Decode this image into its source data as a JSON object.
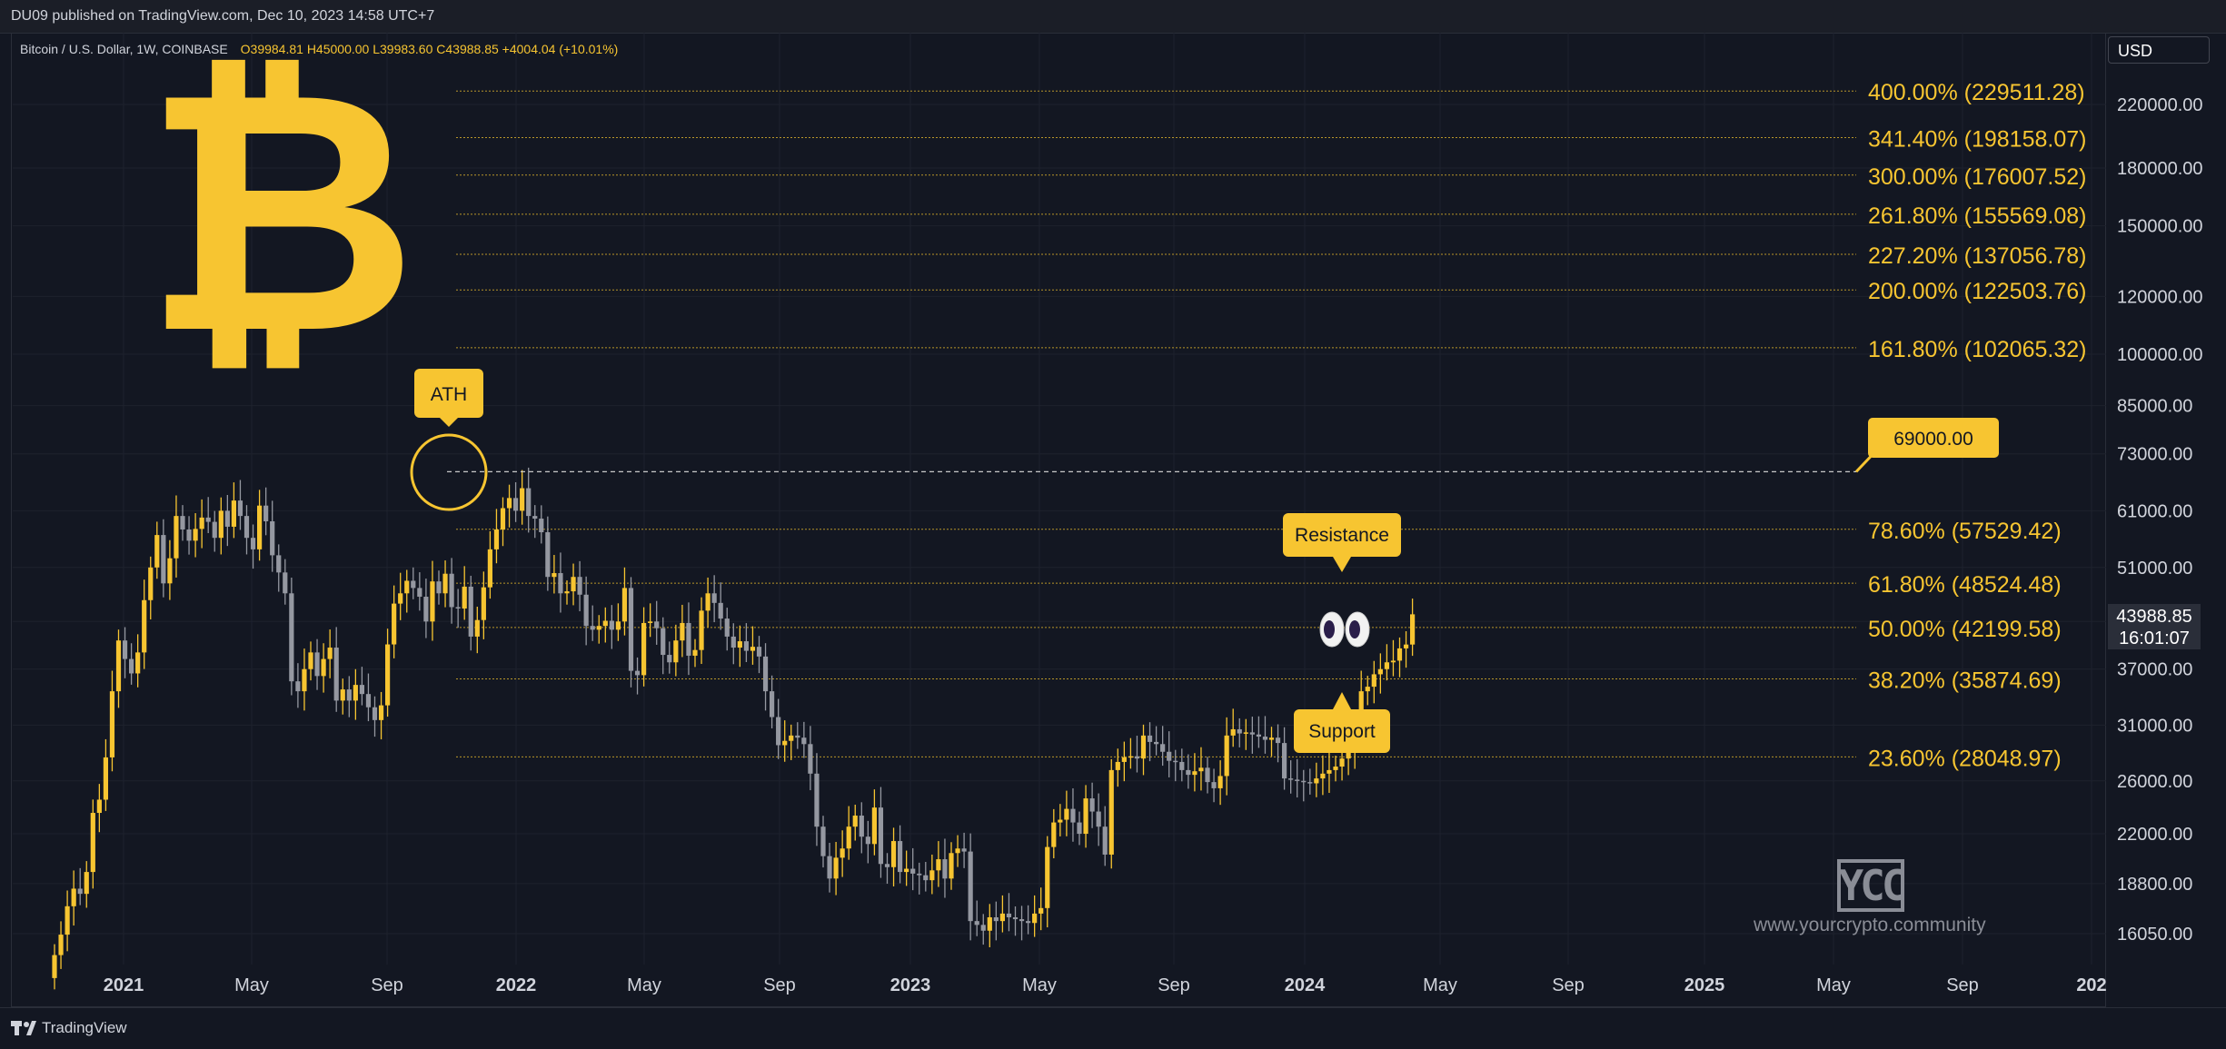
{
  "header": {
    "published": "DU09 published on TradingView.com, Dec 10, 2023 14:58 UTC+7"
  },
  "symbol": {
    "name": "Bitcoin / U.S. Dollar, 1W, COINBASE",
    "ohlc": "O39984.81 H45000.00 L39983.60 C43988.85 +4004.04 (+10.01%)"
  },
  "currency": "USD",
  "current_price": "43988.85",
  "countdown": "16:01:07",
  "footer": {
    "brand": "TradingView"
  },
  "watermark": {
    "logo": "YCC",
    "url": "www.yourcrypto.community"
  },
  "colors": {
    "background": "#131722",
    "accent": "#f7c531",
    "bear": "#9598a1",
    "bull": "#f7c531"
  },
  "icons": [
    "bitcoin-logo-icon",
    "eyes-icon",
    "tradingview-logo-icon"
  ],
  "chart_data": {
    "type": "candlestick",
    "title": "",
    "y_scale": "log",
    "y_ticks": [
      "220000.00",
      "180000.00",
      "150000.00",
      "120000.00",
      "100000.00",
      "85000.00",
      "73000.00",
      "61000.00",
      "51000.00",
      "43000.00",
      "37000.00",
      "31000.00",
      "26000.00",
      "22000.00",
      "18800.00",
      "16050.00"
    ],
    "x_ticks": [
      "2021",
      "May",
      "Sep",
      "2022",
      "May",
      "Sep",
      "2023",
      "May",
      "Sep",
      "2024",
      "May",
      "Sep",
      "2025",
      "May",
      "Sep",
      "202"
    ],
    "fib_levels": [
      {
        "label": "400.00% (229511.28)",
        "value": 229511.28
      },
      {
        "label": "341.40% (198158.07)",
        "value": 198158.07
      },
      {
        "label": "300.00% (176007.52)",
        "value": 176007.52
      },
      {
        "label": "261.80% (155569.08)",
        "value": 155569.08
      },
      {
        "label": "227.20% (137056.78)",
        "value": 137056.78
      },
      {
        "label": "200.00% (122503.76)",
        "value": 122503.76
      },
      {
        "label": "161.80% (102065.32)",
        "value": 102065.32
      },
      {
        "label": "78.60% (57529.42)",
        "value": 57529.42
      },
      {
        "label": "61.80% (48524.48)",
        "value": 48524.48
      },
      {
        "label": "50.00% (42199.58)",
        "value": 42199.58
      },
      {
        "label": "38.20% (35874.69)",
        "value": 35874.69
      },
      {
        "label": "23.60% (28048.97)",
        "value": 28048.97
      }
    ],
    "ath": {
      "label": "ATH",
      "value": 69000
    },
    "ath_price_label": "69000.00",
    "annotations": [
      "Resistance",
      "Support"
    ],
    "weekly_closes": [
      15000,
      16000,
      17500,
      18500,
      18200,
      19500,
      23500,
      24500,
      28000,
      34500,
      40500,
      38200,
      36500,
      39000,
      46000,
      51000,
      56500,
      48500,
      52500,
      60000,
      57500,
      55500,
      57600,
      59700,
      58900,
      56000,
      61000,
      58000,
      63000,
      60000,
      56000,
      54000,
      62000,
      59000,
      53000,
      50200,
      47000,
      35600,
      34500,
      37000,
      39000,
      36200,
      38200,
      39600,
      33500,
      34700,
      33500,
      35200,
      34200,
      32800,
      31500,
      33000,
      40000,
      45500,
      47000,
      48900,
      47800,
      46500,
      43000,
      48800,
      47000,
      50000,
      45000,
      44800,
      48000,
      41000,
      43200,
      47900,
      54000,
      57500,
      61500,
      63500,
      61000,
      65500,
      60000,
      59500,
      57000,
      49500,
      50100,
      47000,
      47300,
      49500,
      46800,
      42400,
      41900,
      42400,
      43100,
      41900,
      43000,
      47800,
      36800,
      36300,
      42800,
      43000,
      42100,
      38700,
      37800,
      40500,
      42800,
      38600,
      39300,
      44500,
      47000,
      45600,
      43400,
      41000,
      39600,
      40400,
      39200,
      39700,
      38500,
      34500,
      31800,
      29100,
      29500,
      30000,
      29800,
      29200,
      26600,
      22500,
      20500,
      19100,
      20400,
      21000,
      22500,
      23300,
      21800,
      21300,
      23900,
      20000,
      19800,
      21500,
      19500,
      19700,
      19400,
      19300,
      19000,
      19600,
      20300,
      19100,
      20700,
      21000,
      20800,
      16700,
      16500,
      16200,
      16900,
      16700,
      17100,
      16900,
      16800,
      16700,
      16600,
      17100,
      17400,
      21100,
      22800,
      23000,
      23800,
      22800,
      22000,
      24600,
      23600,
      22500,
      20600,
      26900,
      27600,
      28000,
      28100,
      27900,
      30000,
      29400,
      29200,
      28500,
      27700,
      27600,
      26900,
      26500,
      26800,
      27100,
      25900,
      25400,
      26400,
      30000,
      30600,
      30200,
      30300,
      30100,
      29900,
      29600,
      29800,
      29300,
      26200,
      26100,
      26000,
      25900,
      25800,
      26200,
      26600,
      26900,
      27200,
      27900,
      28700,
      30000,
      34500,
      35000,
      36400,
      37000,
      37800,
      38000,
      39500,
      39984,
      43988
    ]
  }
}
